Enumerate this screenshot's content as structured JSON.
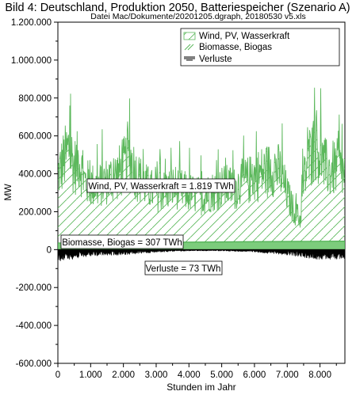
{
  "chart_data": {
    "type": "area",
    "title": "Bild 4: Deutschland, Produktion 2050, Batteriespeicher (Szenario A)",
    "subtitle": "Datei Mac/Dokumente/20201205.dgraph, 20180530 v5.xls",
    "xlabel": "Stunden im Jahr",
    "ylabel": "MW",
    "xlim": [
      0,
      8760
    ],
    "ylim": [
      -600000,
      1200000
    ],
    "grid": false,
    "legend_position": "top-right",
    "x_ticks": [
      {
        "value": 0,
        "label": "0"
      },
      {
        "value": 1000,
        "label": "1.000"
      },
      {
        "value": 2000,
        "label": "2.000"
      },
      {
        "value": 3000,
        "label": "3.000"
      },
      {
        "value": 4000,
        "label": "4.000"
      },
      {
        "value": 5000,
        "label": "5.000"
      },
      {
        "value": 6000,
        "label": "6.000"
      },
      {
        "value": 7000,
        "label": "7.000"
      },
      {
        "value": 8000,
        "label": "8.000"
      }
    ],
    "y_ticks": [
      {
        "value": 1200000,
        "label": "1.200.000"
      },
      {
        "value": 1000000,
        "label": "1.000.000"
      },
      {
        "value": 800000,
        "label": "800.000"
      },
      {
        "value": 600000,
        "label": "600.000"
      },
      {
        "value": 400000,
        "label": "400.000"
      },
      {
        "value": 200000,
        "label": "200.000"
      },
      {
        "value": 0,
        "label": "0"
      },
      {
        "value": -200000,
        "label": "-200.000"
      },
      {
        "value": -400000,
        "label": "-400.000"
      },
      {
        "value": -600000,
        "label": "-600.000"
      }
    ],
    "series": [
      {
        "name": "Wind, PV, Wasserkraft",
        "color": "#5cb85c",
        "style": "hatched-area",
        "profile_x": [
          0,
          200,
          350,
          500,
          650,
          800,
          1000,
          1200,
          1400,
          1600,
          1800,
          2000,
          2200,
          2400,
          2600,
          2800,
          3000,
          3200,
          3400,
          3600,
          3800,
          4000,
          4200,
          4400,
          4600,
          4800,
          5000,
          5200,
          5400,
          5600,
          5800,
          6000,
          6200,
          6400,
          6600,
          6800,
          7000,
          7200,
          7400,
          7500,
          7700,
          7900,
          8100,
          8300,
          8500,
          8760
        ],
        "profile_y": [
          380000,
          460000,
          520000,
          420000,
          460000,
          350000,
          330000,
          320000,
          340000,
          360000,
          380000,
          420000,
          470000,
          380000,
          340000,
          310000,
          290000,
          300000,
          310000,
          320000,
          300000,
          290000,
          280000,
          270000,
          290000,
          300000,
          320000,
          320000,
          310000,
          340000,
          350000,
          370000,
          390000,
          400000,
          420000,
          390000,
          280000,
          200000,
          150000,
          350000,
          480000,
          540000,
          430000,
          400000,
          420000,
          380000
        ]
      },
      {
        "name": "Biomasse, Biogas",
        "color": "#4caf50",
        "style": "hatched-area",
        "profile_x": [
          0,
          8760
        ],
        "profile_y": [
          35000,
          45000
        ]
      },
      {
        "name": "Verluste",
        "color": "#000000",
        "style": "line",
        "profile_x": [
          0,
          1000,
          2000,
          3000,
          4000,
          5000,
          6000,
          7000,
          8000,
          8760
        ],
        "profile_y": [
          -45000,
          -25000,
          -20000,
          -10000,
          -5000,
          -5000,
          -10000,
          -20000,
          -40000,
          -35000
        ]
      }
    ],
    "annotations": [
      {
        "text": "Wind, PV, Wasserkraft = 1.819 TWh",
        "x": 2200,
        "y": 335000
      },
      {
        "text": "Biomasse, Biogas = 307 TWh",
        "x": 1550,
        "y": 40000
      },
      {
        "text": "Verluste = 73 TWh",
        "x": 3900,
        "y": -95000
      }
    ]
  }
}
